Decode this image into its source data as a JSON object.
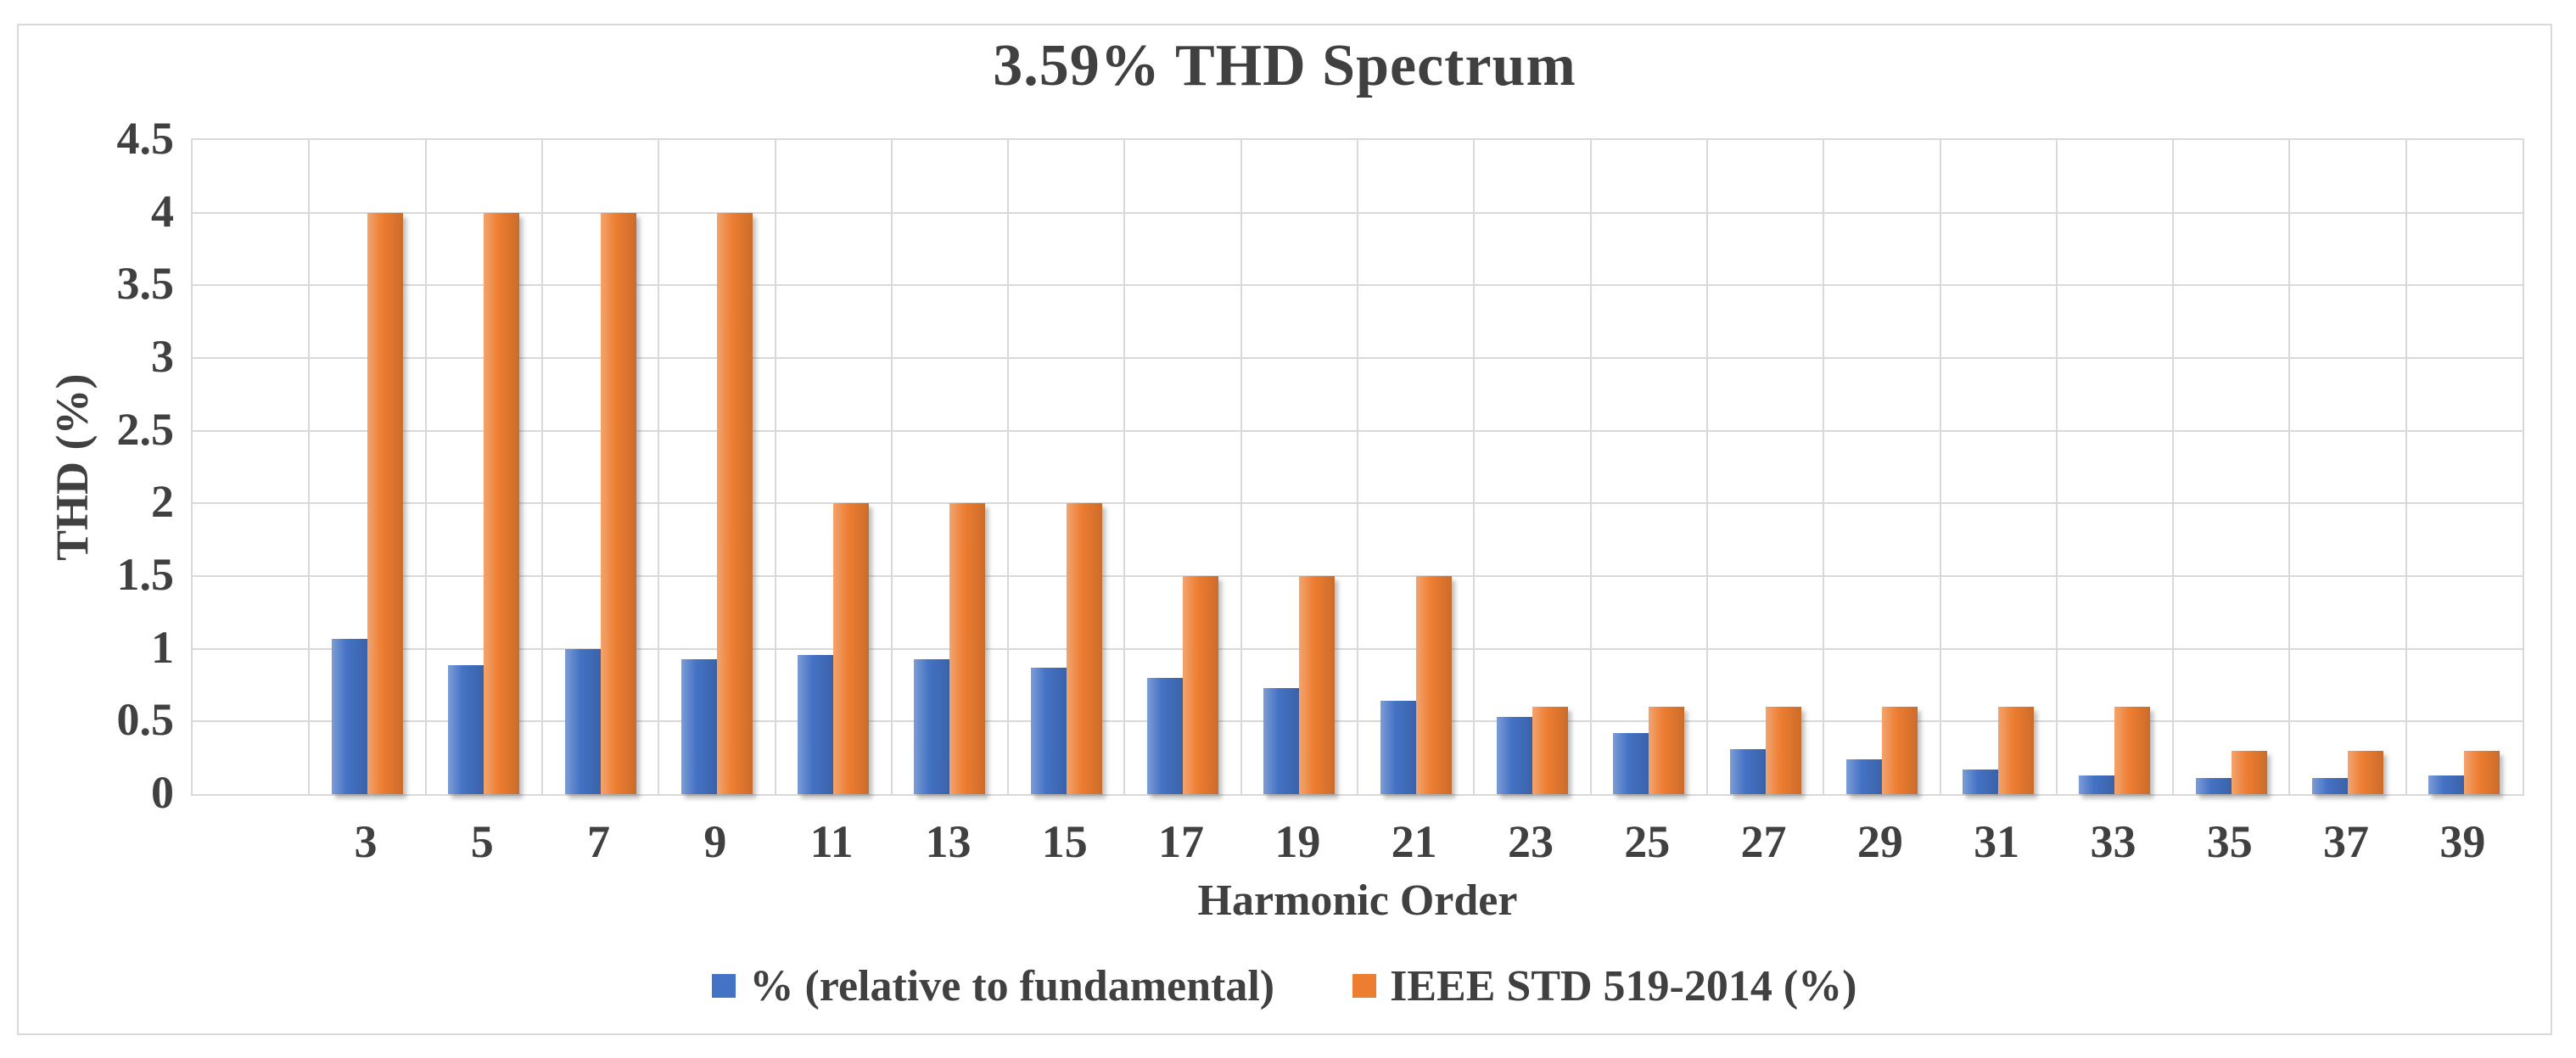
{
  "chart_data": {
    "type": "bar",
    "title": "3.59% THD Spectrum",
    "xlabel": "Harmonic Order",
    "ylabel": "THD (%)",
    "ylim": [
      0,
      4.5
    ],
    "ytick_labels": [
      "0",
      "0.5",
      "1",
      "1.5",
      "2",
      "2.5",
      "3",
      "3.5",
      "4",
      "4.5"
    ],
    "grid": true,
    "legend_position": "bottom",
    "leading_empty_category_slots": 1,
    "categories": [
      "3",
      "5",
      "7",
      "9",
      "11",
      "13",
      "15",
      "17",
      "19",
      "21",
      "23",
      "25",
      "27",
      "29",
      "31",
      "33",
      "35",
      "37",
      "39"
    ],
    "series": [
      {
        "name": "% (relative to fundamental)",
        "color": "#4472C4",
        "values": [
          1.07,
          0.89,
          1.0,
          0.93,
          0.96,
          0.93,
          0.87,
          0.8,
          0.73,
          0.64,
          0.53,
          0.42,
          0.31,
          0.24,
          0.17,
          0.13,
          0.11,
          0.11,
          0.13
        ]
      },
      {
        "name": "IEEE STD 519-2014 (%)",
        "color": "#ED7D31",
        "values": [
          4.0,
          4.0,
          4.0,
          4.0,
          2.0,
          2.0,
          2.0,
          1.5,
          1.5,
          1.5,
          0.6,
          0.6,
          0.6,
          0.6,
          0.6,
          0.6,
          0.3,
          0.3,
          0.3
        ]
      }
    ],
    "colors": {
      "grid": "#d9d9d9",
      "text": "#404040"
    }
  }
}
